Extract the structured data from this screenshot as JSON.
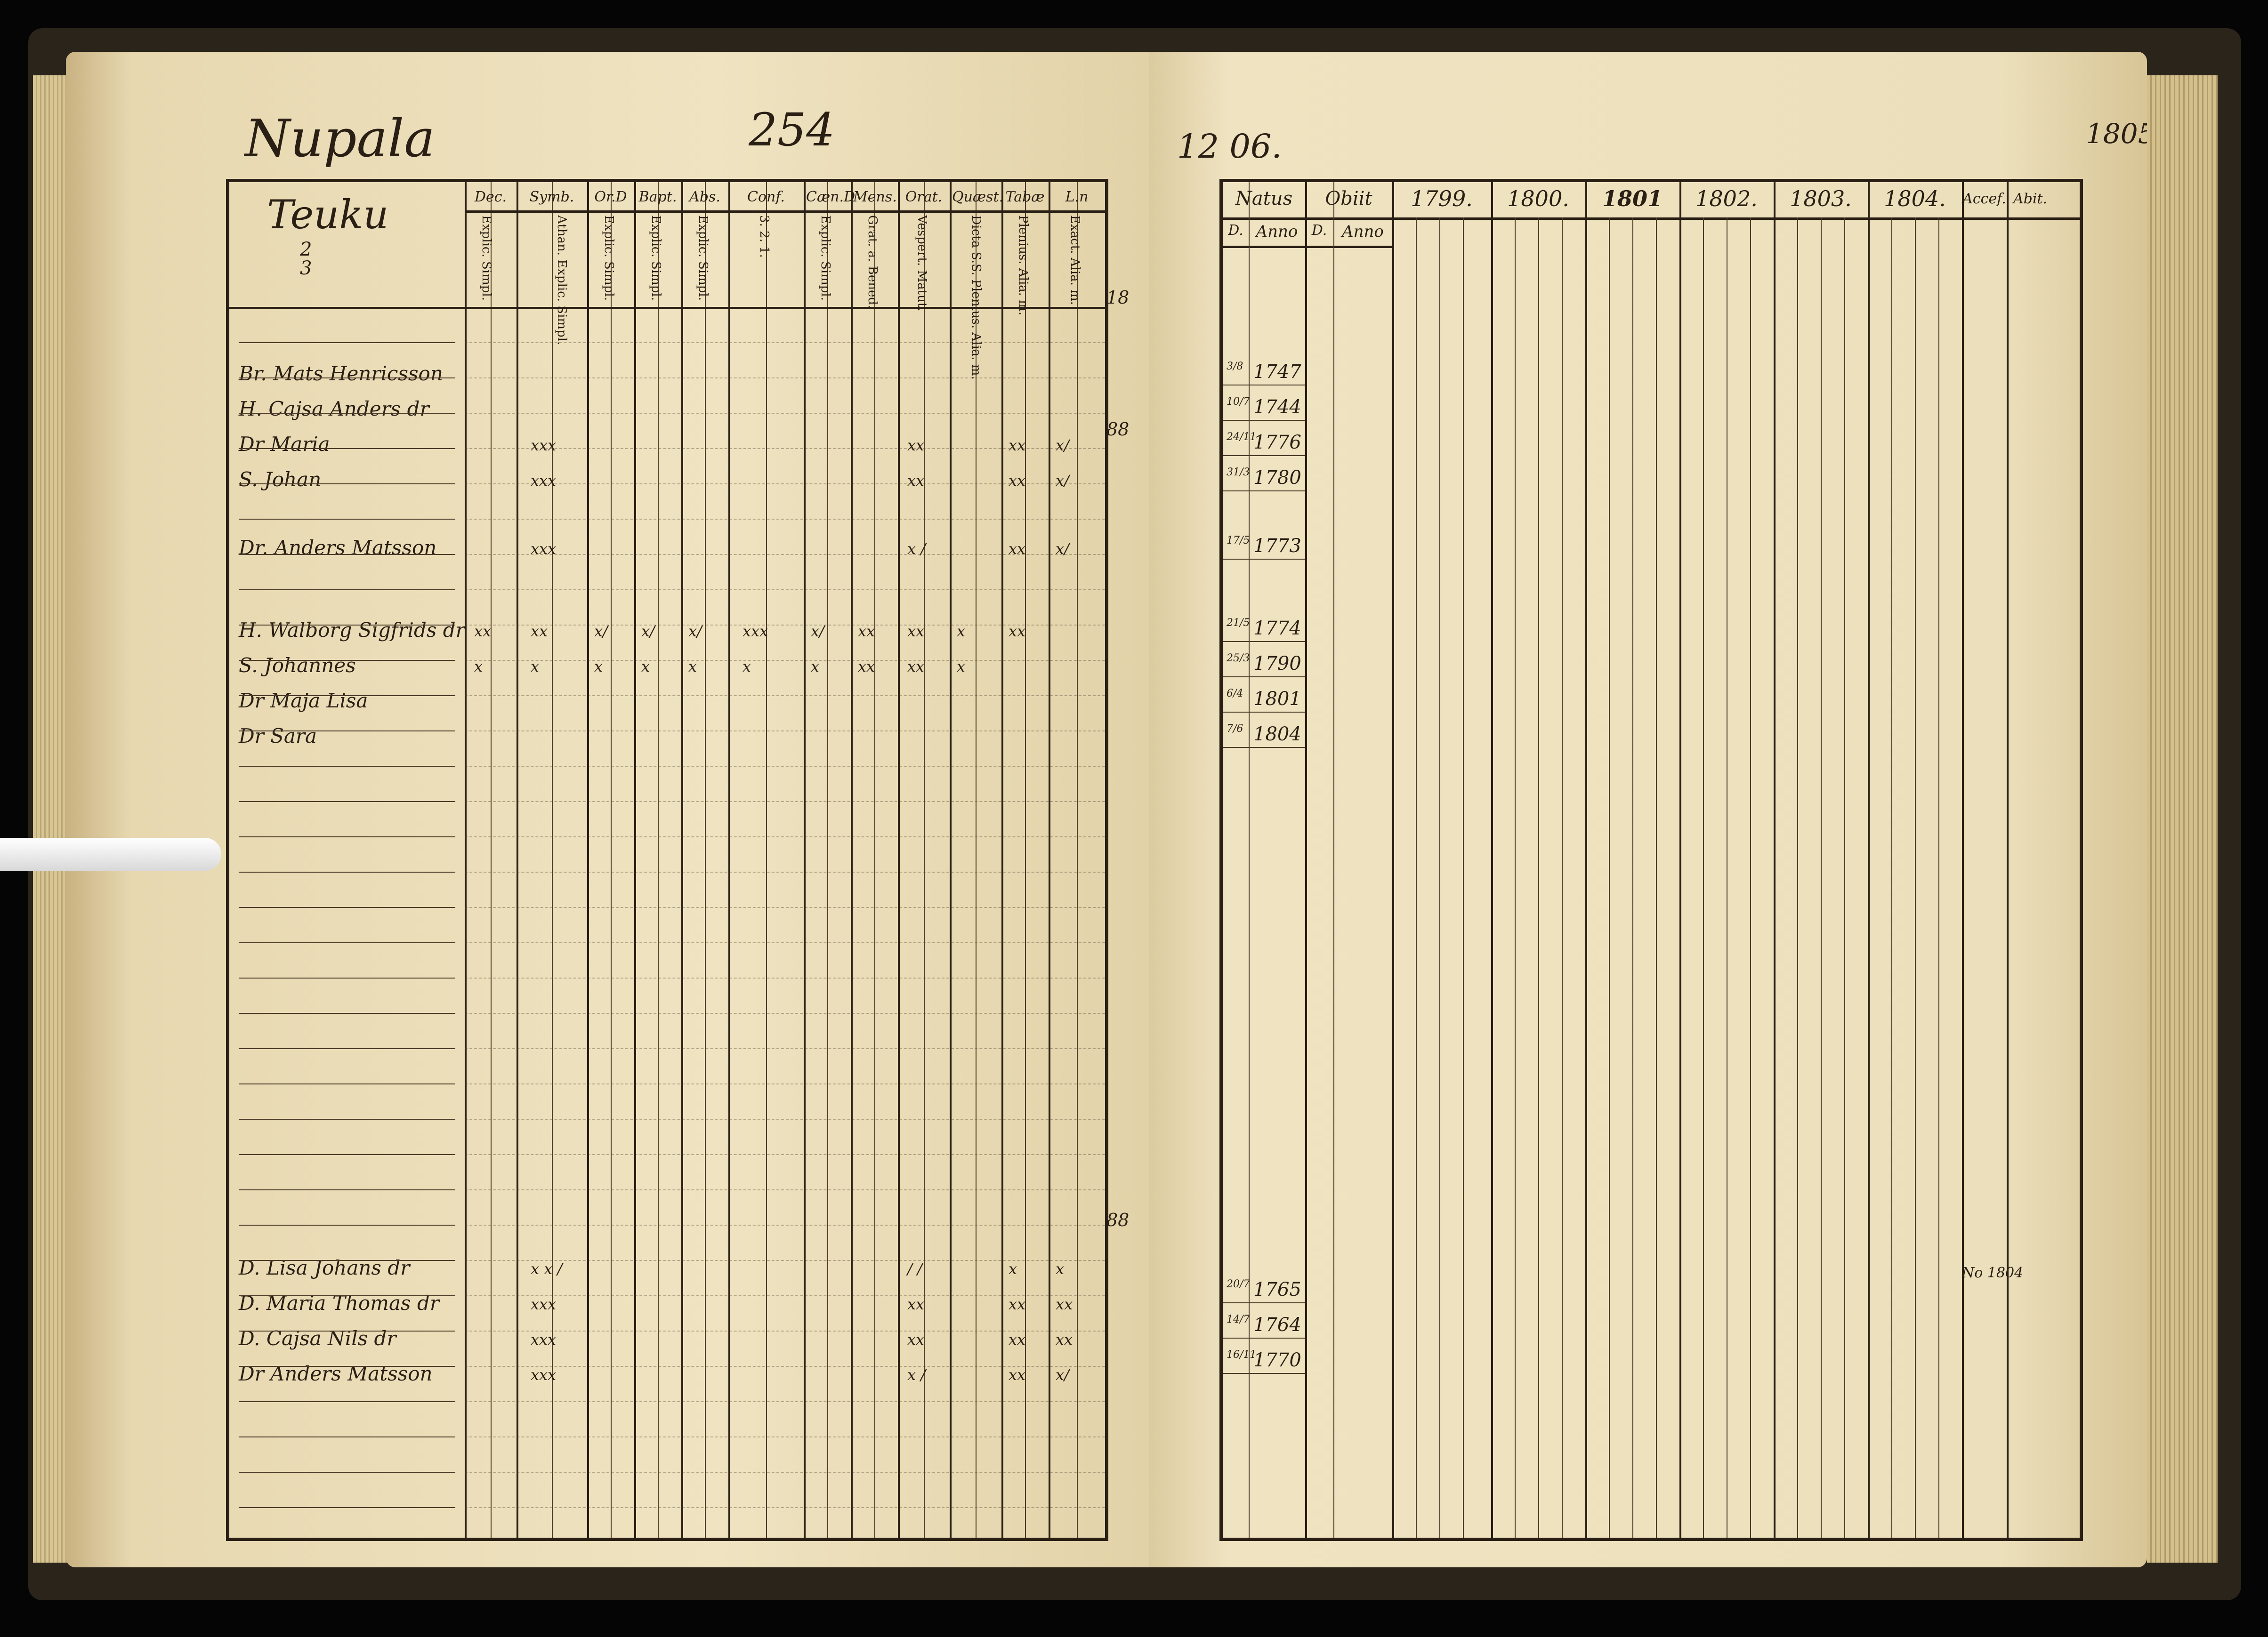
{
  "left_page": {
    "village": "Nupala",
    "page_number": "254",
    "holding": "Teuku",
    "holding_fraction": [
      "2",
      "3"
    ],
    "headers": [
      "Dec.",
      "Symb.",
      "Or.D",
      "Bapt.",
      "Abs.",
      "Conf.",
      "Cæn.D",
      "Mens.",
      "Orat.",
      "Quæst.",
      "Tabæ",
      "L.n"
    ],
    "subheaders": [
      "Explic. Simpl.",
      "Athan. Explic. Simpl.",
      "Explic. Simpl.",
      "Explic. Simpl.",
      "Explic. Simpl.",
      "3. 2. 1.",
      "Explic. Simpl.",
      "Grat. a. Bened.",
      "Vespert. Matut.",
      "Dicta S.S. Plenius. Alia. m.",
      "Plenius. Alia. m.",
      "Exact. Alia. m."
    ],
    "persons": [
      {
        "name": "Br. Mats Henricsson",
        "marks": []
      },
      {
        "name": "H. Cajsa Anders dr",
        "marks": []
      },
      {
        "name": "Dr Maria",
        "marks": [
          "xxx",
          "xx",
          "xx",
          "x/"
        ]
      },
      {
        "name": "S. Johan",
        "marks": [
          "xxx",
          "xx",
          "xx",
          "x/"
        ]
      },
      {
        "name": "Dr. Anders Matsson",
        "marks": [
          "xxx",
          "x /",
          "xx",
          "x/"
        ]
      },
      {
        "name": "H. Walborg Sigfrids dr",
        "marks": [
          "xx",
          "xx",
          "x/",
          "x/",
          "x/",
          "xxx",
          "x/",
          "xx",
          "xx",
          "x",
          "xx"
        ]
      },
      {
        "name": "S. Johannes",
        "marks": [
          "x",
          "x",
          "x",
          "x",
          "x",
          "x",
          "x",
          "xx",
          "xx",
          "x"
        ]
      },
      {
        "name": "Dr Maja Lisa",
        "marks": []
      },
      {
        "name": "Dr Sara",
        "marks": []
      },
      {
        "name": "D. Lisa Johans dr",
        "marks": [
          "x x /",
          "/ /",
          "x",
          "x"
        ]
      },
      {
        "name": "D. Maria Thomas dr",
        "marks": [
          "xxx",
          "xx",
          "xx",
          "xx"
        ]
      },
      {
        "name": "D. Cajsa Nils dr",
        "marks": [
          "xxx",
          "xx",
          "xx",
          "xx"
        ]
      },
      {
        "name": "Dr Anders Matsson",
        "marks": [
          "xxx",
          "x /",
          "xx",
          "x/"
        ]
      }
    ],
    "margin_notes": [
      "18",
      "88",
      "88"
    ]
  },
  "right_page": {
    "corner_note": "12 06.",
    "headers": {
      "natus": "Natus",
      "obiit": "Obiit",
      "years": [
        "1799.",
        "1800.",
        "1801",
        "1802.",
        "1803.",
        "1804."
      ],
      "accessit": "Accef.",
      "abiit": "Abit.",
      "last_year": "1805."
    },
    "subheaders": {
      "d": "D.",
      "anno": "Anno"
    },
    "births": [
      {
        "date": "3/8",
        "year": "1747"
      },
      {
        "date": "10/7",
        "year": "1744"
      },
      {
        "date": "24/11",
        "year": "1776"
      },
      {
        "date": "31/3",
        "year": "1780"
      },
      {
        "date": "17/5",
        "year": "1773"
      },
      {
        "date": "21/5",
        "year": "1774"
      },
      {
        "date": "25/3",
        "year": "1790"
      },
      {
        "date": "6/4",
        "year": "1801"
      },
      {
        "date": "7/6",
        "year": "1804"
      },
      {
        "date": "20/7",
        "year": "1765"
      },
      {
        "date": "14/7",
        "year": "1764"
      },
      {
        "date": "16/11",
        "year": "1770"
      }
    ],
    "abiit_note": "No 1804"
  },
  "colors": {
    "ink": "#2a1f14",
    "paper": "#ede0bb",
    "background": "#050505"
  }
}
